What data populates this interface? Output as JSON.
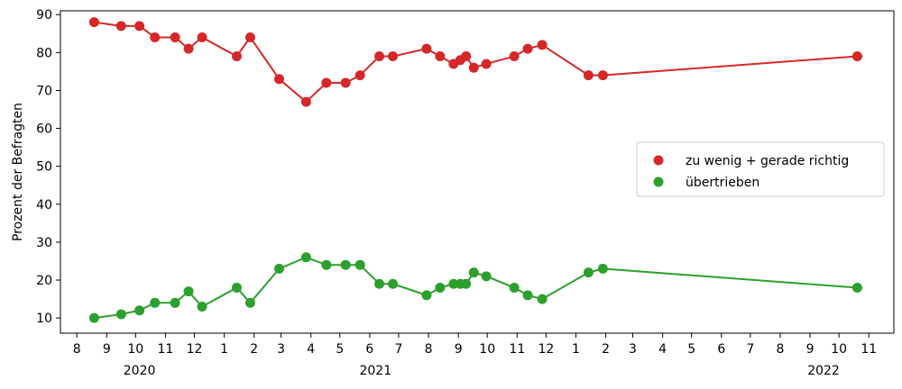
{
  "chart_data": {
    "type": "line",
    "title": "",
    "xlabel": "",
    "ylabel": "Prozent der Befragten",
    "ylim": [
      6,
      91
    ],
    "xlim": [
      "2020-07-15",
      "2022-11-27"
    ],
    "y_ticks": [
      10,
      20,
      30,
      40,
      50,
      60,
      70,
      80,
      90
    ],
    "x_ticks": [
      {
        "date": "2020-08-01",
        "label": "8"
      },
      {
        "date": "2020-09-01",
        "label": "9"
      },
      {
        "date": "2020-10-01",
        "label": "10"
      },
      {
        "date": "2020-11-01",
        "label": "11"
      },
      {
        "date": "2020-12-01",
        "label": "12"
      },
      {
        "date": "2021-01-01",
        "label": "1"
      },
      {
        "date": "2021-02-01",
        "label": "2"
      },
      {
        "date": "2021-03-01",
        "label": "3"
      },
      {
        "date": "2021-04-01",
        "label": "4"
      },
      {
        "date": "2021-05-01",
        "label": "5"
      },
      {
        "date": "2021-06-01",
        "label": "6"
      },
      {
        "date": "2021-07-01",
        "label": "7"
      },
      {
        "date": "2021-08-01",
        "label": "8"
      },
      {
        "date": "2021-09-01",
        "label": "9"
      },
      {
        "date": "2021-10-01",
        "label": "10"
      },
      {
        "date": "2021-11-01",
        "label": "11"
      },
      {
        "date": "2021-12-01",
        "label": "12"
      },
      {
        "date": "2022-01-01",
        "label": "1"
      },
      {
        "date": "2022-02-01",
        "label": "2"
      },
      {
        "date": "2022-03-01",
        "label": "3"
      },
      {
        "date": "2022-04-01",
        "label": "4"
      },
      {
        "date": "2022-05-01",
        "label": "5"
      },
      {
        "date": "2022-06-01",
        "label": "6"
      },
      {
        "date": "2022-07-01",
        "label": "7"
      },
      {
        "date": "2022-08-01",
        "label": "8"
      },
      {
        "date": "2022-09-01",
        "label": "9"
      },
      {
        "date": "2022-10-01",
        "label": "10"
      },
      {
        "date": "2022-11-01",
        "label": "11"
      }
    ],
    "year_labels": [
      {
        "date": "2020-10-05",
        "label": "2020"
      },
      {
        "date": "2021-06-07",
        "label": "2021"
      },
      {
        "date": "2022-09-15",
        "label": "2022"
      }
    ],
    "legend_position": "center-right",
    "grid": false,
    "series": [
      {
        "name": "zu wenig + gerade richtig",
        "color": "#d62728",
        "points": [
          [
            "2020-08-19",
            88
          ],
          [
            "2020-09-16",
            87
          ],
          [
            "2020-10-05",
            87
          ],
          [
            "2020-10-21",
            84
          ],
          [
            "2020-11-11",
            84
          ],
          [
            "2020-11-25",
            81
          ],
          [
            "2020-12-09",
            84
          ],
          [
            "2021-01-14",
            79
          ],
          [
            "2021-01-28",
            84
          ],
          [
            "2021-02-27",
            73
          ],
          [
            "2021-03-27",
            67
          ],
          [
            "2021-04-17",
            72
          ],
          [
            "2021-05-07",
            72
          ],
          [
            "2021-05-22",
            74
          ],
          [
            "2021-06-11",
            79
          ],
          [
            "2021-06-25",
            79
          ],
          [
            "2021-07-30",
            81
          ],
          [
            "2021-08-13",
            79
          ],
          [
            "2021-08-27",
            77
          ],
          [
            "2021-09-03",
            78
          ],
          [
            "2021-09-09",
            79
          ],
          [
            "2021-09-17",
            76
          ],
          [
            "2021-09-30",
            77
          ],
          [
            "2021-10-29",
            79
          ],
          [
            "2021-11-12",
            81
          ],
          [
            "2021-11-27",
            82
          ],
          [
            "2022-01-14",
            74
          ],
          [
            "2022-01-29",
            74
          ],
          [
            "2022-10-20",
            79
          ]
        ]
      },
      {
        "name": "übertrieben",
        "color": "#2ca02c",
        "points": [
          [
            "2020-08-19",
            10
          ],
          [
            "2020-09-16",
            11
          ],
          [
            "2020-10-05",
            12
          ],
          [
            "2020-10-21",
            14
          ],
          [
            "2020-11-11",
            14
          ],
          [
            "2020-11-25",
            17
          ],
          [
            "2020-12-09",
            13
          ],
          [
            "2021-01-14",
            18
          ],
          [
            "2021-01-28",
            14
          ],
          [
            "2021-02-27",
            23
          ],
          [
            "2021-03-27",
            26
          ],
          [
            "2021-04-17",
            24
          ],
          [
            "2021-05-07",
            24
          ],
          [
            "2021-05-22",
            24
          ],
          [
            "2021-06-11",
            19
          ],
          [
            "2021-06-25",
            19
          ],
          [
            "2021-07-30",
            16
          ],
          [
            "2021-08-13",
            18
          ],
          [
            "2021-08-27",
            19
          ],
          [
            "2021-09-03",
            19
          ],
          [
            "2021-09-09",
            19
          ],
          [
            "2021-09-17",
            22
          ],
          [
            "2021-09-30",
            21
          ],
          [
            "2021-10-29",
            18
          ],
          [
            "2021-11-12",
            16
          ],
          [
            "2021-11-27",
            15
          ],
          [
            "2022-01-14",
            22
          ],
          [
            "2022-01-29",
            23
          ],
          [
            "2022-10-20",
            18
          ]
        ]
      }
    ]
  }
}
